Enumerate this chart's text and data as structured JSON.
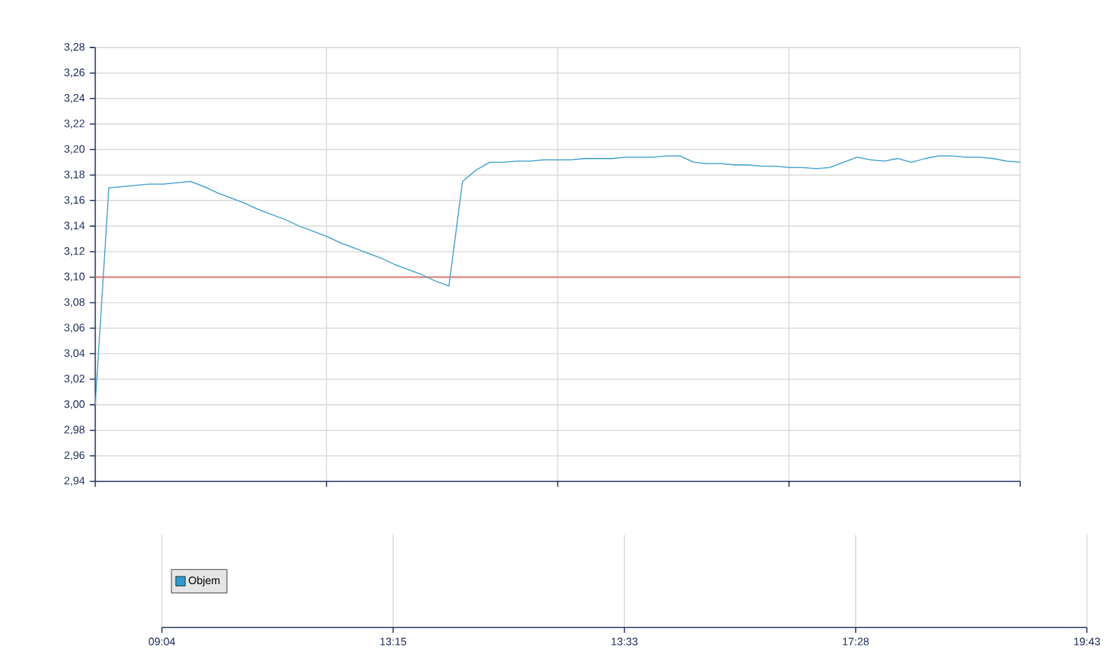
{
  "chart_data": [
    {
      "type": "line",
      "categories": [
        null,
        null,
        null,
        null,
        null,
        null,
        null,
        null,
        null,
        null,
        null,
        null,
        null,
        null,
        null,
        null,
        null,
        null,
        null,
        null,
        null,
        null,
        null,
        null,
        null,
        null,
        null,
        null,
        null,
        null,
        null,
        null,
        null,
        null,
        null,
        null,
        null,
        null,
        null,
        null,
        null,
        null,
        null,
        null,
        null,
        null,
        null,
        null,
        null,
        null,
        null,
        null,
        null,
        null,
        null,
        null,
        null,
        null,
        null,
        null,
        null,
        null,
        null,
        null,
        null,
        null,
        null,
        null,
        null
      ],
      "ylim": [
        2.94,
        3.28
      ],
      "grid": true,
      "tick_labels": "y",
      "yticks": [
        {
          "value": 2.94,
          "label": "2,94"
        },
        {
          "value": 2.96,
          "label": "2,96"
        },
        {
          "value": 2.98,
          "label": "2,98"
        },
        {
          "value": 3.0,
          "label": "3,00"
        },
        {
          "value": 3.02,
          "label": "3,02"
        },
        {
          "value": 3.04,
          "label": "3,04"
        },
        {
          "value": 3.06,
          "label": "3,06"
        },
        {
          "value": 3.08,
          "label": "3,08"
        },
        {
          "value": 3.1,
          "label": "3,10"
        },
        {
          "value": 3.12,
          "label": "3,12"
        },
        {
          "value": 3.14,
          "label": "3,14"
        },
        {
          "value": 3.16,
          "label": "3,16"
        },
        {
          "value": 3.18,
          "label": "3,18"
        },
        {
          "value": 3.2,
          "label": "3,20"
        },
        {
          "value": 3.22,
          "label": "3,22"
        },
        {
          "value": 3.24,
          "label": "3,24"
        },
        {
          "value": 3.26,
          "label": "3,26"
        },
        {
          "value": 3.28,
          "label": "3,28"
        }
      ],
      "ref_lines": [
        {
          "axis": "y",
          "value": 3.1,
          "color": "#e08080"
        }
      ],
      "series": [
        {
          "color": "#4aa3cf",
          "values": [
            3.0,
            3.17,
            3.171,
            3.172,
            3.173,
            3.173,
            3.174,
            3.175,
            3.171,
            3.166,
            3.162,
            3.158,
            3.153,
            3.149,
            3.145,
            3.14,
            3.136,
            3.132,
            3.127,
            3.123,
            3.119,
            3.115,
            3.11,
            3.106,
            3.102,
            3.097,
            3.093,
            3.175,
            3.184,
            3.19,
            3.19,
            3.191,
            3.191,
            3.192,
            3.192,
            3.192,
            3.193,
            3.193,
            3.193,
            3.194,
            3.194,
            3.194,
            3.195,
            3.195,
            3.19,
            3.189,
            3.189,
            3.188,
            3.188,
            3.187,
            3.187,
            3.186,
            3.186,
            3.185,
            3.186,
            3.19,
            3.194,
            3.192,
            3.191,
            3.193,
            3.19,
            3.193,
            3.195,
            3.195,
            3.194,
            3.194,
            3.193,
            3.191,
            3.19
          ]
        }
      ]
    },
    {
      "type": "other",
      "categories": [
        "09:04",
        "13:15",
        "13:33",
        "17:28",
        "19:43"
      ],
      "legend": "left",
      "series": [
        {
          "name": "Objem",
          "color": "#3399cc",
          "values": [
            null,
            null,
            null,
            null,
            null
          ]
        }
      ]
    }
  ]
}
